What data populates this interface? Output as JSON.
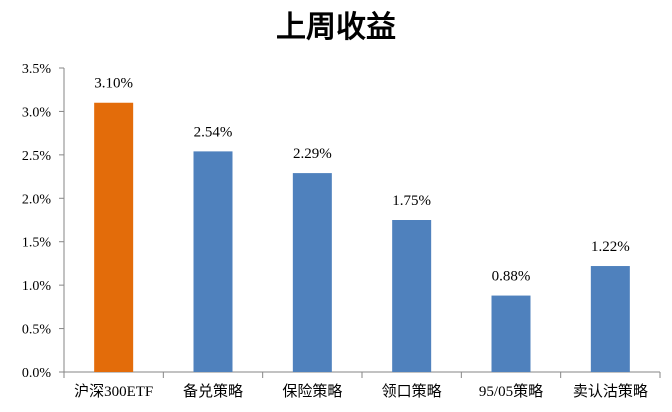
{
  "chart_data": {
    "type": "bar",
    "title": "上周收益",
    "xlabel": "",
    "ylabel": "",
    "categories": [
      "沪深300ETF",
      "备兑策略",
      "保险策略",
      "领口策略",
      "95/05策略",
      "卖认沽策略"
    ],
    "values": [
      3.1,
      2.54,
      2.29,
      1.75,
      0.88,
      1.22
    ],
    "value_labels": [
      "3.10%",
      "2.54%",
      "2.29%",
      "1.75%",
      "0.88%",
      "1.22%"
    ],
    "bar_colors": [
      "#E36C0A",
      "#4F81BD",
      "#4F81BD",
      "#4F81BD",
      "#4F81BD",
      "#4F81BD"
    ],
    "ylim": [
      0,
      3.5
    ],
    "yticks": [
      0,
      0.5,
      1.0,
      1.5,
      2.0,
      2.5,
      3.0,
      3.5
    ],
    "ytick_labels": [
      "0.0%",
      "0.5%",
      "1.0%",
      "1.5%",
      "2.0%",
      "2.5%",
      "3.0%",
      "3.5%"
    ],
    "grid": false,
    "legend": "none"
  }
}
